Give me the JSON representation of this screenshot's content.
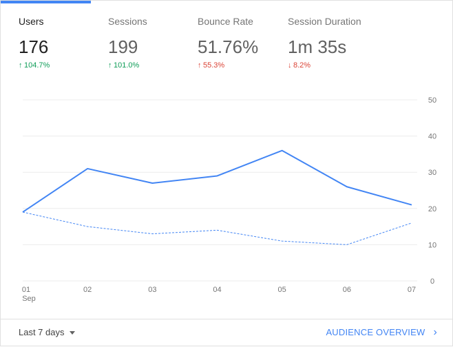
{
  "metrics": [
    {
      "label": "Users",
      "value": "176",
      "change": "104.7%",
      "direction": "up",
      "color": "#0f9d58",
      "arrow": "↑"
    },
    {
      "label": "Sessions",
      "value": "199",
      "change": "101.0%",
      "direction": "up",
      "color": "#0f9d58",
      "arrow": "↑"
    },
    {
      "label": "Bounce Rate",
      "value": "51.76%",
      "change": "55.3%",
      "direction": "up",
      "color": "#db4437",
      "arrow": "↑"
    },
    {
      "label": "Session Duration",
      "value": "1m 35s",
      "change": "8.2%",
      "direction": "down",
      "color": "#db4437",
      "arrow": "↓"
    }
  ],
  "active_metric": "Users",
  "chart_data": {
    "type": "line",
    "categories": [
      "01",
      "02",
      "03",
      "04",
      "05",
      "06",
      "07"
    ],
    "x_sublabel": "Sep",
    "ylim": [
      0,
      50
    ],
    "yticks": [
      0,
      10,
      20,
      30,
      40,
      50
    ],
    "y_axis_position": "right",
    "grid": true,
    "series": [
      {
        "values": [
          19,
          31,
          27,
          29,
          36,
          26,
          21
        ],
        "style": "solid",
        "color": "#4285f4"
      },
      {
        "values": [
          19,
          15,
          13,
          14,
          11,
          10,
          16
        ],
        "style": "dashed",
        "color": "#4285f4"
      }
    ]
  },
  "footer": {
    "range_label": "Last 7 days",
    "overview_label": "AUDIENCE OVERVIEW"
  }
}
